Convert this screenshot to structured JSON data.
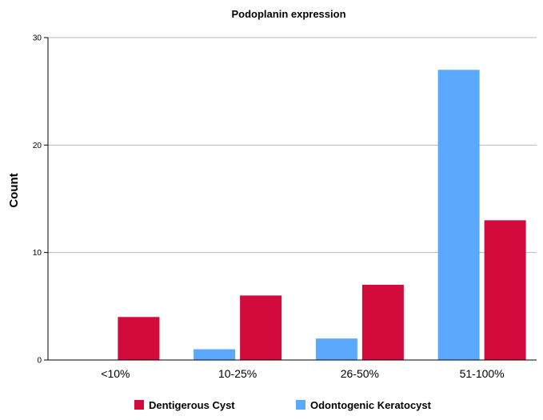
{
  "chart_data": {
    "type": "bar",
    "title": "Podoplanin expression",
    "xlabel": "",
    "ylabel": "Count",
    "ylim": [
      0,
      30
    ],
    "yticks": [
      0,
      10,
      20,
      30
    ],
    "grid": true,
    "legend_position": "bottom",
    "categories": [
      "<10%",
      "10-25%",
      "26-50%",
      "51-100%"
    ],
    "series": [
      {
        "name": "Odontogenic Keratocyst",
        "color": "#5ba8ff",
        "values": [
          0,
          1,
          2,
          27
        ]
      },
      {
        "name": "Dentigerous Cyst",
        "color": "#d30a3c",
        "values": [
          4,
          6,
          7,
          13
        ]
      }
    ],
    "legend": [
      {
        "name": "Dentigerous Cyst",
        "color": "#d30a3c"
      },
      {
        "name": "Odontogenic Keratocyst",
        "color": "#5ba8ff"
      }
    ]
  }
}
